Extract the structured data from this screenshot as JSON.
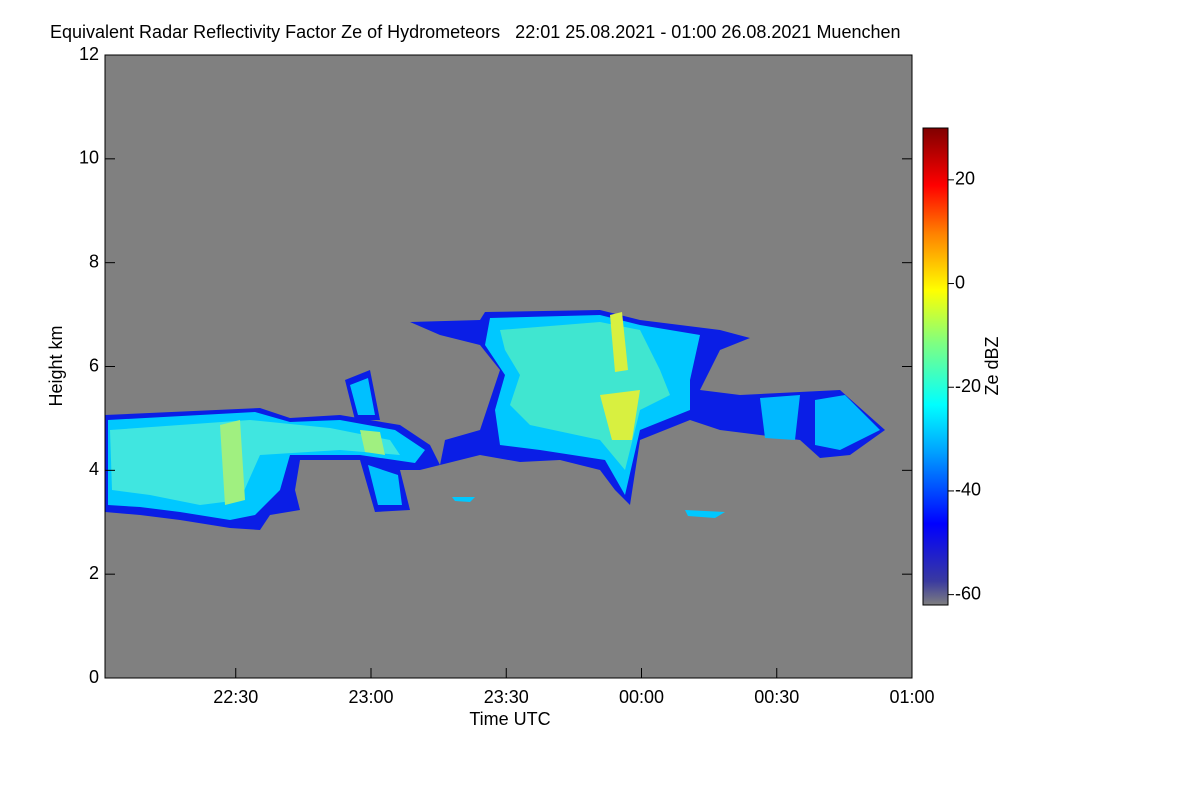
{
  "chart_data": {
    "type": "heatmap",
    "title": "Equivalent Radar Reflectivity Factor Ze of Hydrometeors   22:01 25.08.2021 - 01:00 26.08.2021 Muenchen",
    "x_label": "Time UTC",
    "y_label": "Height km",
    "colorbar_label": "Ze dBZ",
    "xlim": [
      1,
      180
    ],
    "xticks": [
      {
        "value": 30,
        "label": "22:30"
      },
      {
        "value": 60,
        "label": "23:00"
      },
      {
        "value": 90,
        "label": "23:30"
      },
      {
        "value": 120,
        "label": "00:00"
      },
      {
        "value": 150,
        "label": "00:30"
      },
      {
        "value": 180,
        "label": "01:00"
      }
    ],
    "ylim": [
      0,
      12
    ],
    "yticks": [
      0,
      2,
      4,
      6,
      8,
      10,
      12
    ],
    "clim": [
      -62,
      30
    ],
    "cticks": [
      -60,
      -40,
      -20,
      0,
      20
    ]
  }
}
